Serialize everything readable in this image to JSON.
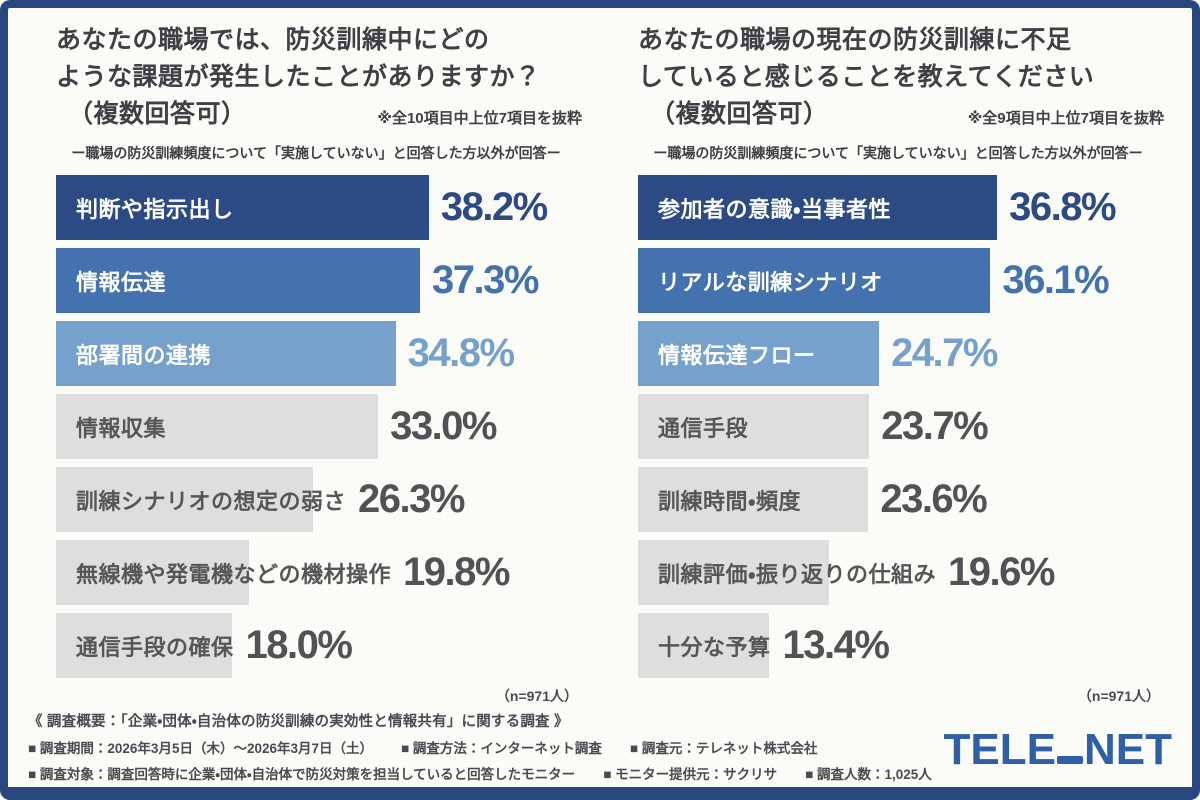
{
  "colors": {
    "border": "#27477d",
    "background": "#fbfbf8",
    "navy": "#2c4b84",
    "medium_blue": "#4472ae",
    "light_blue": "#76a1cc",
    "gray_bar": "#dedede",
    "title_text": "#3f3f46",
    "gray_text": "#525256",
    "logo_blue": "#2f5fa7"
  },
  "chart_data": [
    {
      "type": "bar",
      "orientation": "horizontal",
      "title": "あなたの職場では、防災訓練中にどのような課題が発生したことがありますか？（複数回答可）",
      "title_lines": [
        "あなたの職場では、防災訓練中にどの",
        "ような課題が発生したことがありますか？"
      ],
      "multi_answer": "（複数回答可）",
      "note": "※全10項目中上位7項目を抜粋",
      "filter_note": "ー職場の防災訓練頻度について「実施していない」と回答した方以外が回答ー",
      "n_label": "（n=971人）",
      "unit": "%",
      "xlim": [
        0,
        40
      ],
      "categories": [
        "判断や指示出し",
        "情報伝達",
        "部署間の連携",
        "情報収集",
        "訓練シナリオの想定の弱さ",
        "無線機や発電機などの機材操作",
        "通信手段の確保"
      ],
      "values": [
        38.2,
        37.3,
        34.8,
        33.0,
        26.3,
        19.8,
        18.0
      ],
      "bar_colors": [
        "#2c4b84",
        "#4472ae",
        "#76a1cc",
        "#dedede",
        "#dedede",
        "#dedede",
        "#dedede"
      ],
      "label_colors": [
        "#ffffff",
        "#ffffff",
        "#ffffff",
        "#565658",
        "#565658",
        "#565658",
        "#565658"
      ],
      "value_colors": [
        "#2c4b84",
        "#4472ae",
        "#76a1cc",
        "#525256",
        "#525256",
        "#525256",
        "#525256"
      ]
    },
    {
      "type": "bar",
      "orientation": "horizontal",
      "title": "あなたの職場の現在の防災訓練に不足していると感じることを教えてください（複数回答可）",
      "title_lines": [
        "あなたの職場の現在の防災訓練に不足",
        "していると感じることを教えてください"
      ],
      "multi_answer": "（複数回答可）",
      "note": "※全9項目中上位7項目を抜粋",
      "filter_note": "ー職場の防災訓練頻度について「実施していない」と回答した方以外が回答ー",
      "n_label": "（n=971人）",
      "unit": "%",
      "xlim": [
        0,
        40
      ],
      "categories": [
        "参加者の意識・当事者性",
        "リアルな訓練シナリオ",
        "情報伝達フロー",
        "通信手段",
        "訓練時間・頻度",
        "訓練評価・振り返りの仕組み",
        "十分な予算"
      ],
      "values": [
        36.8,
        36.1,
        24.7,
        23.7,
        23.6,
        19.6,
        13.4
      ],
      "bar_colors": [
        "#2c4b84",
        "#4472ae",
        "#76a1cc",
        "#dedede",
        "#dedede",
        "#dedede",
        "#dedede"
      ],
      "label_colors": [
        "#ffffff",
        "#ffffff",
        "#ffffff",
        "#565658",
        "#565658",
        "#565658",
        "#565658"
      ],
      "value_colors": [
        "#2c4b84",
        "#4472ae",
        "#76a1cc",
        "#525256",
        "#525256",
        "#525256",
        "#525256"
      ]
    }
  ],
  "footer": {
    "heading": "《 調査概要：「企業・団体・自治体の防災訓練の実効性と情報共有」に関する調査 》",
    "rows": [
      [
        "■ 調査期間：2026年3月5日（木）～2026年3月7日（土）",
        "■ 調査方法：インターネット調査",
        "■ 調査元：テレネット株式会社"
      ],
      [
        "■ 調査対象：調査回答時に企業・団体・自治体で防災対策を担当していると回答したモニター",
        "■ モニター提供元：サクリサ",
        "■ 調査人数：1,025人"
      ]
    ],
    "logo": {
      "part1": "TELE",
      "part2": "NET"
    }
  }
}
